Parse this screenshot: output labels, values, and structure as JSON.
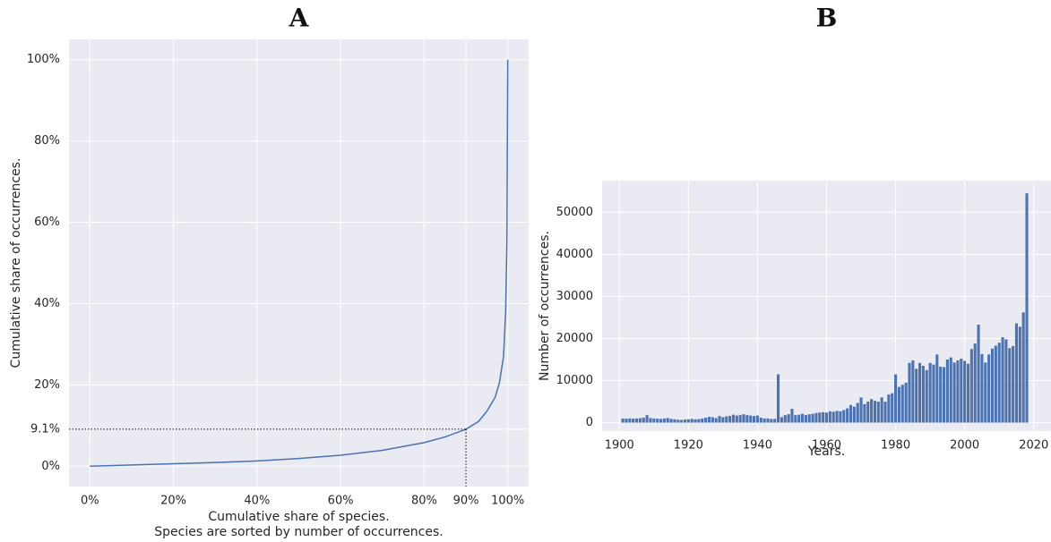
{
  "chart_data": [
    {
      "type": "line",
      "title": "A",
      "xlabel": [
        "Cumulative share of species.",
        "Species are sorted by number of occurrences."
      ],
      "ylabel": "Cumulative share of occurrences.",
      "x": [
        0,
        10,
        20,
        30,
        40,
        50,
        60,
        70,
        80,
        85,
        90,
        93,
        95,
        97,
        98,
        99,
        99.5,
        99.8,
        100
      ],
      "series": [
        {
          "name": "Cumulative share",
          "color": "#4c72b0",
          "values": [
            0,
            0.3,
            0.6,
            0.9,
            1.3,
            1.9,
            2.7,
            3.9,
            5.8,
            7.2,
            9.1,
            11,
            13.5,
            17,
            20.5,
            27,
            38,
            55,
            100
          ]
        }
      ],
      "reference_point": {
        "x": 90,
        "y": 9.1
      },
      "xlim": [
        -5,
        105
      ],
      "ylim": [
        -5,
        105
      ],
      "xticks": [
        {
          "value": 0,
          "label": "0%"
        },
        {
          "value": 20,
          "label": "20%"
        },
        {
          "value": 40,
          "label": "40%"
        },
        {
          "value": 60,
          "label": "60%"
        },
        {
          "value": 80,
          "label": "80%"
        },
        {
          "value": 90,
          "label": "90%"
        },
        {
          "value": 100,
          "label": "100%"
        }
      ],
      "yticks": [
        {
          "value": 0,
          "label": "0%"
        },
        {
          "value": 9.1,
          "label": "9.1%"
        },
        {
          "value": 20,
          "label": "20%"
        },
        {
          "value": 40,
          "label": "40%"
        },
        {
          "value": 60,
          "label": "60%"
        },
        {
          "value": 80,
          "label": "80%"
        },
        {
          "value": 100,
          "label": "100%"
        }
      ],
      "grid": true
    },
    {
      "type": "bar",
      "title": "B",
      "xlabel": [
        "Years."
      ],
      "ylabel": "Number of occurrences.",
      "color": "#4c72b0",
      "x": [
        1901,
        1902,
        1903,
        1904,
        1905,
        1906,
        1907,
        1908,
        1909,
        1910,
        1911,
        1912,
        1913,
        1914,
        1915,
        1916,
        1917,
        1918,
        1919,
        1920,
        1921,
        1922,
        1923,
        1924,
        1925,
        1926,
        1927,
        1928,
        1929,
        1930,
        1931,
        1932,
        1933,
        1934,
        1935,
        1936,
        1937,
        1938,
        1939,
        1940,
        1941,
        1942,
        1943,
        1944,
        1945,
        1946,
        1947,
        1948,
        1949,
        1950,
        1951,
        1952,
        1953,
        1954,
        1955,
        1956,
        1957,
        1958,
        1959,
        1960,
        1961,
        1962,
        1963,
        1964,
        1965,
        1966,
        1967,
        1968,
        1969,
        1970,
        1971,
        1972,
        1973,
        1974,
        1975,
        1976,
        1977,
        1978,
        1979,
        1980,
        1981,
        1982,
        1983,
        1984,
        1985,
        1986,
        1987,
        1988,
        1989,
        1990,
        1991,
        1992,
        1993,
        1994,
        1995,
        1996,
        1997,
        1998,
        1999,
        2000,
        2001,
        2002,
        2003,
        2004,
        2005,
        2006,
        2007,
        2008,
        2009,
        2010,
        2011,
        2012,
        2013,
        2014,
        2015,
        2016,
        2017,
        2018
      ],
      "values": [
        1000,
        950,
        1000,
        950,
        1000,
        1050,
        1200,
        1800,
        1100,
        1000,
        950,
        900,
        1000,
        1100,
        900,
        800,
        700,
        650,
        750,
        800,
        900,
        800,
        850,
        1000,
        1200,
        1400,
        1300,
        1100,
        1600,
        1300,
        1500,
        1600,
        1900,
        1700,
        1800,
        2000,
        1800,
        1700,
        1600,
        1700,
        1200,
        1000,
        1000,
        900,
        900,
        11500,
        1300,
        1800,
        2000,
        3300,
        1800,
        1900,
        2100,
        1800,
        2000,
        2100,
        2300,
        2400,
        2500,
        2400,
        2700,
        2600,
        2800,
        2700,
        3000,
        3400,
        4200,
        3800,
        4700,
        6000,
        4400,
        5000,
        5600,
        5200,
        5000,
        6000,
        5000,
        6700,
        7000,
        11500,
        8500,
        9000,
        9500,
        14200,
        14800,
        12800,
        14200,
        13500,
        12500,
        14200,
        13800,
        16200,
        13300,
        13200,
        15000,
        15500,
        14300,
        14800,
        15200,
        14700,
        14000,
        17500,
        18800,
        23300,
        16300,
        14300,
        16200,
        17600,
        18300,
        19000,
        20300,
        19800,
        17700,
        18200,
        23600,
        22800,
        26200,
        54500
      ],
      "xlim": [
        1895,
        2025
      ],
      "ylim": [
        -2000,
        57500
      ],
      "xticks": [
        1900,
        1920,
        1940,
        1960,
        1980,
        2000,
        2020
      ],
      "yticks": [
        0,
        10000,
        20000,
        30000,
        40000,
        50000
      ],
      "grid": true
    }
  ]
}
